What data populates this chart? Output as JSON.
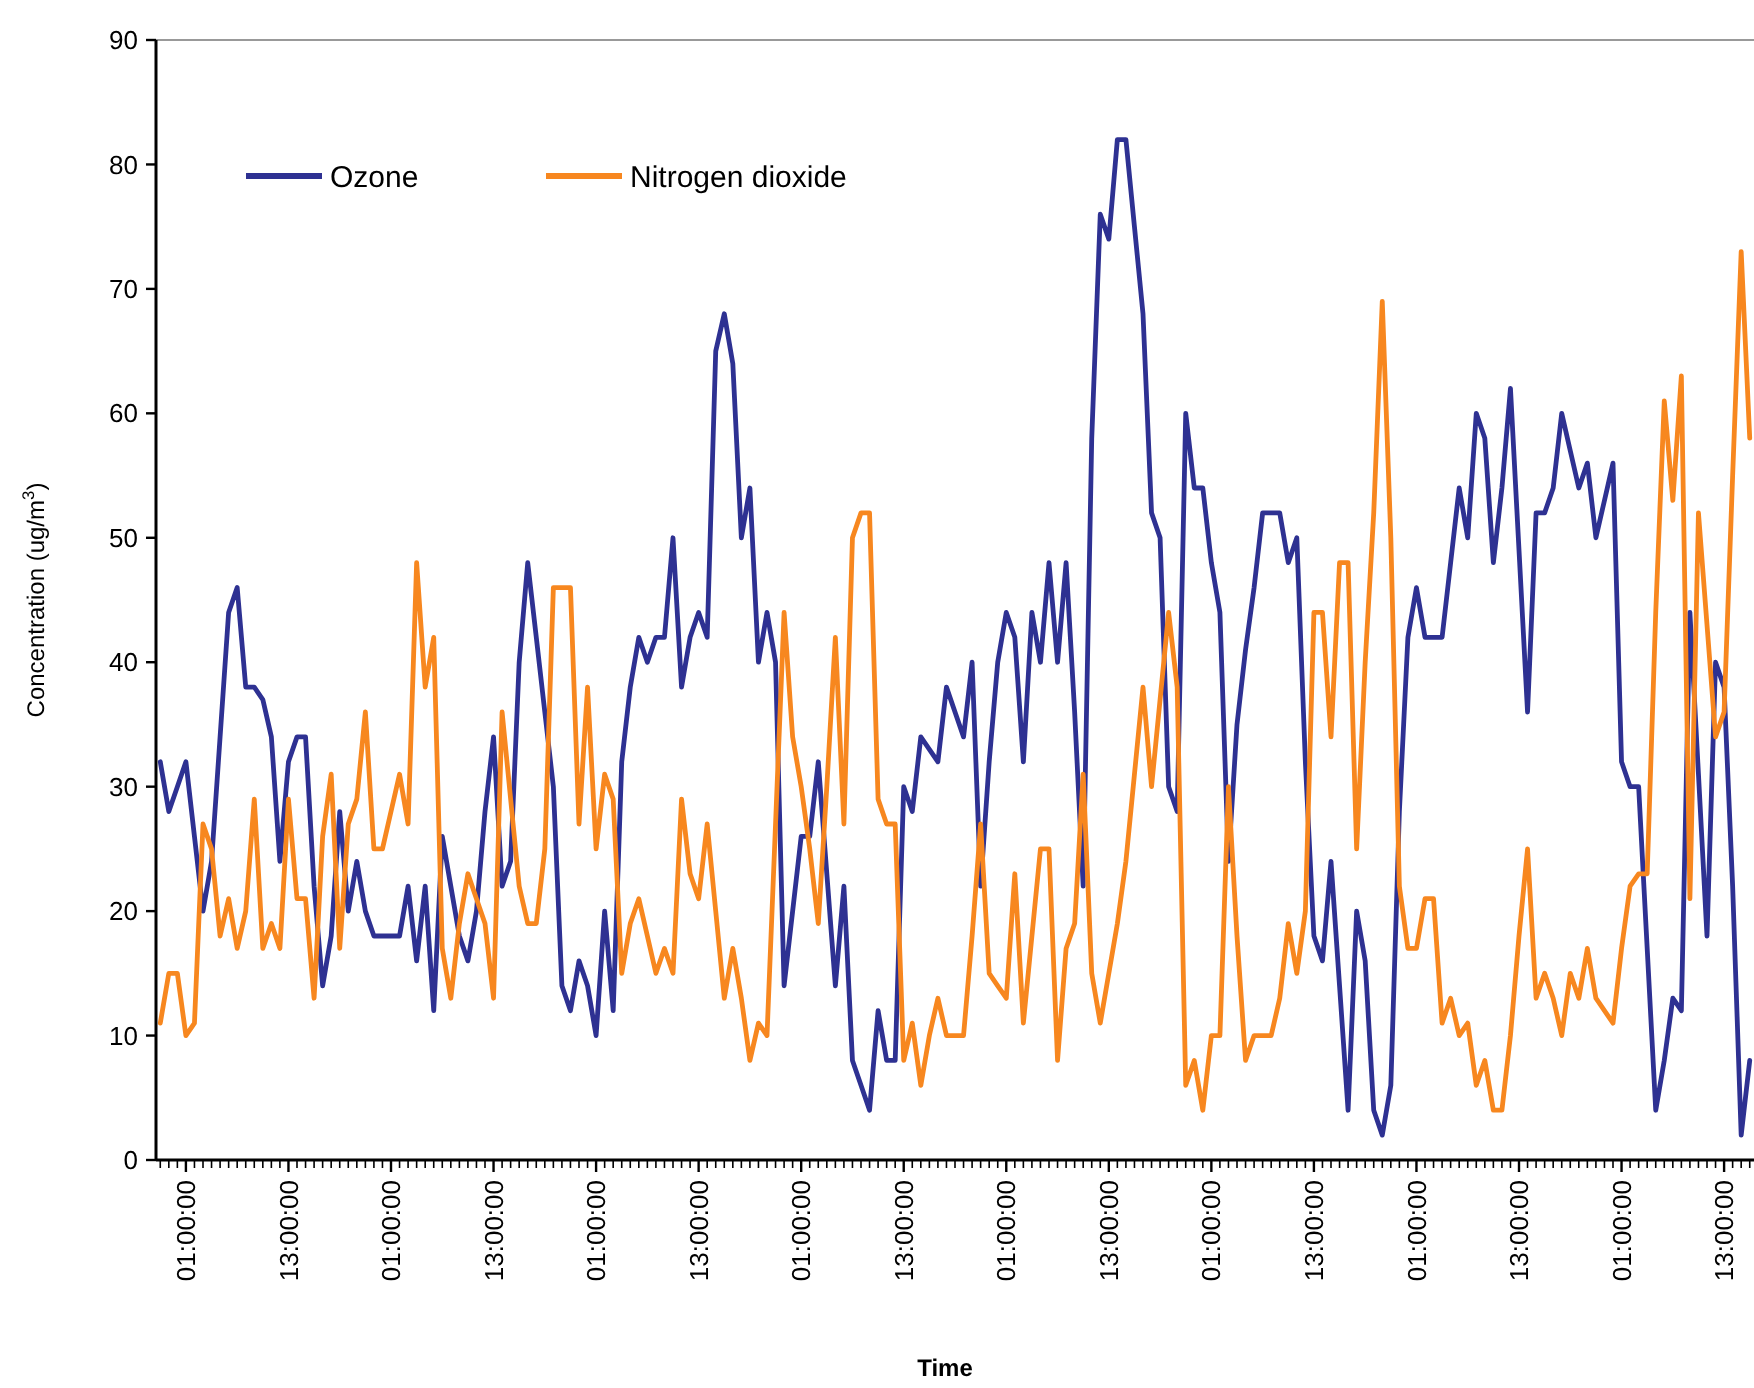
{
  "chart_data": {
    "type": "line",
    "xlabel": "Time",
    "ylabel": "Concentration (ug/m$^{3}$)",
    "ylim": [
      0,
      90
    ],
    "yticks": [
      0,
      10,
      20,
      30,
      40,
      50,
      60,
      70,
      80,
      90
    ],
    "categories": [
      null,
      null,
      null,
      "01:00:00",
      null,
      null,
      null,
      null,
      null,
      null,
      null,
      null,
      null,
      null,
      null,
      "13:00:00",
      null,
      null,
      null,
      null,
      null,
      null,
      null,
      null,
      null,
      null,
      null,
      "01:00:00",
      null,
      null,
      null,
      null,
      null,
      null,
      null,
      null,
      null,
      null,
      null,
      "13:00:00",
      null,
      null,
      null,
      null,
      null,
      null,
      null,
      null,
      null,
      null,
      null,
      "01:00:00",
      null,
      null,
      null,
      null,
      null,
      null,
      null,
      null,
      null,
      null,
      null,
      "13:00:00",
      null,
      null,
      null,
      null,
      null,
      null,
      null,
      null,
      null,
      null,
      null,
      "01:00:00",
      null,
      null,
      null,
      null,
      null,
      null,
      null,
      null,
      null,
      null,
      null,
      "13:00:00",
      null,
      null,
      null,
      null,
      null,
      null,
      null,
      null,
      null,
      null,
      null,
      "01:00:00",
      null,
      null,
      null,
      null,
      null,
      null,
      null,
      null,
      null,
      null,
      null,
      "13:00:00",
      null,
      null,
      null,
      null,
      null,
      null,
      null,
      null,
      null,
      null,
      null,
      "01:00:00",
      null,
      null,
      null,
      null,
      null,
      null,
      null,
      null,
      null,
      null,
      null,
      "13:00:00",
      null,
      null,
      null,
      null,
      null,
      null,
      null,
      null,
      null,
      null,
      null,
      "01:00:00",
      null,
      null,
      null,
      null,
      null,
      null,
      null,
      null,
      null,
      null,
      null,
      "13:00:00",
      null,
      null,
      null,
      null,
      null,
      null,
      null,
      null,
      null,
      null,
      null,
      "01:00:00",
      null,
      null,
      null,
      null,
      null,
      null,
      null,
      null,
      null,
      null,
      null,
      "13:00:00",
      null,
      null,
      null
    ],
    "grid": false,
    "legend": "top left",
    "marker": "none",
    "line_style": "solid",
    "series": [
      {
        "name": "Ozone",
        "color": "#2e3192",
        "values": [
          32,
          28,
          30,
          32,
          26,
          20,
          24,
          34,
          44,
          46,
          38,
          38,
          37,
          34,
          24,
          32,
          34,
          34,
          22,
          14,
          18,
          28,
          20,
          24,
          20,
          18,
          18,
          18,
          18,
          22,
          16,
          22,
          12,
          26,
          22,
          18,
          16,
          20,
          28,
          34,
          22,
          24,
          40,
          48,
          42,
          36,
          30,
          14,
          12,
          16,
          14,
          10,
          20,
          12,
          32,
          38,
          42,
          40,
          42,
          42,
          50,
          38,
          42,
          44,
          42,
          65,
          68,
          64,
          50,
          54,
          40,
          44,
          40,
          14,
          20,
          26,
          26,
          32,
          23,
          14,
          22,
          8,
          6,
          4,
          12,
          8,
          8,
          30,
          28,
          34,
          33,
          32,
          38,
          36,
          34,
          40,
          22,
          32,
          40,
          44,
          42,
          32,
          44,
          40,
          48,
          40,
          48,
          36,
          22,
          58,
          76,
          74,
          82,
          82,
          75,
          68,
          52,
          50,
          30,
          28,
          60,
          54,
          54,
          48,
          44,
          24,
          35,
          41,
          46,
          52,
          52,
          52,
          48,
          50,
          32,
          18,
          16,
          24,
          14,
          4,
          20,
          16,
          4,
          2,
          6,
          28,
          42,
          46,
          42,
          42,
          42,
          48,
          54,
          50,
          60,
          58,
          48,
          54,
          62,
          49,
          36,
          52,
          52,
          54,
          60,
          57,
          54,
          56,
          50,
          53,
          56,
          32,
          30,
          30,
          17,
          4,
          8,
          13,
          12,
          44,
          31,
          18,
          40,
          38,
          22,
          2,
          8
        ]
      },
      {
        "name": "Nitrogen dioxide",
        "color": "#f7871f",
        "values": [
          11,
          15,
          15,
          10,
          11,
          27,
          25,
          18,
          21,
          17,
          20,
          29,
          17,
          19,
          17,
          29,
          21,
          21,
          13,
          26,
          31,
          17,
          27,
          29,
          36,
          25,
          25,
          28,
          31,
          27,
          48,
          38,
          42,
          17,
          13,
          19,
          23,
          21,
          19,
          13,
          36,
          29,
          22,
          19,
          19,
          25,
          46,
          46,
          46,
          27,
          38,
          25,
          31,
          29,
          15,
          19,
          21,
          18,
          15,
          17,
          15,
          29,
          23,
          21,
          27,
          20,
          13,
          17,
          13,
          8,
          11,
          10,
          27,
          44,
          34,
          30,
          25,
          19,
          30,
          42,
          27,
          50,
          52,
          52,
          29,
          27,
          27,
          8,
          11,
          6,
          10,
          13,
          10,
          10,
          10,
          18,
          27,
          15,
          14,
          13,
          23,
          11,
          18,
          25,
          25,
          8,
          17,
          19,
          31,
          15,
          11,
          15,
          19,
          24,
          31,
          38,
          30,
          37,
          44,
          38,
          6,
          8,
          4,
          10,
          10,
          30,
          18,
          8,
          10,
          10,
          10,
          13,
          19,
          15,
          20,
          44,
          44,
          34,
          48,
          48,
          25,
          40,
          52,
          69,
          50,
          22,
          17,
          17,
          21,
          21,
          11,
          13,
          10,
          11,
          6,
          8,
          4,
          4,
          10,
          18,
          25,
          13,
          15,
          13,
          10,
          15,
          13,
          17,
          13,
          12,
          11,
          17,
          22,
          23,
          23,
          44,
          61,
          53,
          63,
          21,
          52,
          43,
          34,
          36,
          55,
          73,
          58
        ]
      }
    ]
  }
}
